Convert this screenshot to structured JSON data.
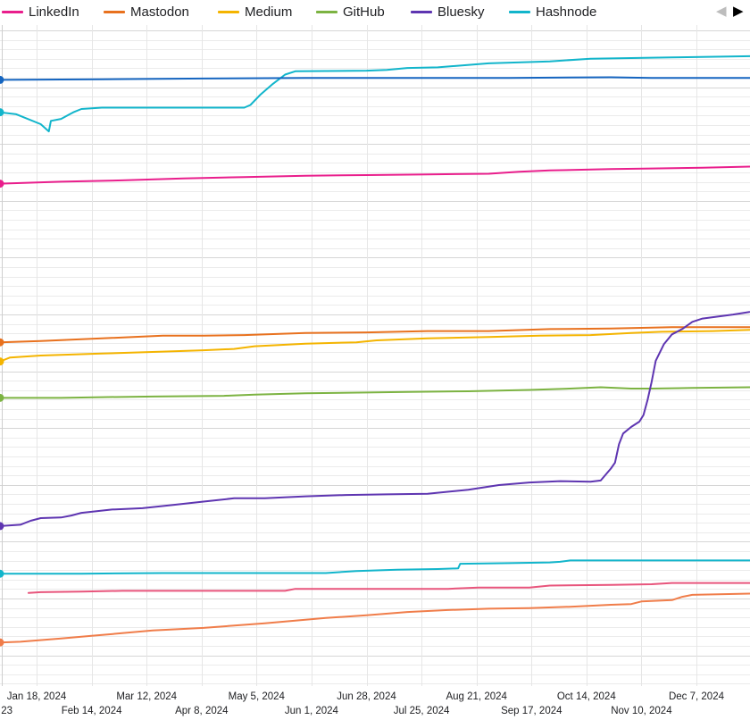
{
  "legend": {
    "items": [
      {
        "name": "LinkedIn",
        "color": "#e91e8c"
      },
      {
        "name": "Mastodon",
        "color": "#e8711e"
      },
      {
        "name": "Medium",
        "color": "#f4b400"
      },
      {
        "name": "GitHub",
        "color": "#7cb342"
      },
      {
        "name": "Bluesky",
        "color": "#5e35b1"
      },
      {
        "name": "Hashnode",
        "color": "#12b5cb"
      }
    ],
    "prev_icon": "◀",
    "next_icon": "▶"
  },
  "chart_data": {
    "type": "line",
    "title": "",
    "xlabel": "",
    "ylabel": "",
    "grid": true,
    "legend_position": "top",
    "x_ticks": [
      {
        "label": "23",
        "date": "2023-12-31"
      },
      {
        "label": "Jan 18, 2024",
        "date": "2024-01-18"
      },
      {
        "label": "Feb 14, 2024",
        "date": "2024-02-14"
      },
      {
        "label": "Mar 12, 2024",
        "date": "2024-03-12"
      },
      {
        "label": "Apr 8, 2024",
        "date": "2024-04-08"
      },
      {
        "label": "May 5, 2024",
        "date": "2024-05-05"
      },
      {
        "label": "Jun 1, 2024",
        "date": "2024-06-01"
      },
      {
        "label": "Jun 28, 2024",
        "date": "2024-06-28"
      },
      {
        "label": "Jul 25, 2024",
        "date": "2024-07-25"
      },
      {
        "label": "Aug 21, 2024",
        "date": "2024-08-21"
      },
      {
        "label": "Sep 17, 2024",
        "date": "2024-09-17"
      },
      {
        "label": "Oct 14, 2024",
        "date": "2024-10-14"
      },
      {
        "label": "Nov 10, 2024",
        "date": "2024-11-10"
      },
      {
        "label": "Dec 7, 2024",
        "date": "2024-12-07"
      }
    ],
    "series": [
      {
        "name": "Hashnode",
        "color": "#12b5cb",
        "values": [
          [
            0,
            0.132
          ],
          [
            8,
            0.135
          ],
          [
            20,
            0.15
          ],
          [
            24,
            0.161
          ],
          [
            25,
            0.145
          ],
          [
            30,
            0.142
          ],
          [
            36,
            0.132
          ],
          [
            40,
            0.127
          ],
          [
            50,
            0.125
          ],
          [
            70,
            0.125
          ],
          [
            120,
            0.125
          ],
          [
            123,
            0.121
          ],
          [
            128,
            0.105
          ],
          [
            134,
            0.089
          ],
          [
            140,
            0.075
          ],
          [
            145,
            0.07
          ],
          [
            180,
            0.069
          ],
          [
            190,
            0.068
          ],
          [
            200,
            0.065
          ],
          [
            215,
            0.064
          ],
          [
            240,
            0.058
          ],
          [
            270,
            0.055
          ],
          [
            290,
            0.051
          ],
          [
            330,
            0.049
          ],
          [
            370,
            0.047
          ]
        ]
      },
      {
        "name": "Bluesky",
        "color": "#1565c0",
        "values": [
          [
            0,
            0.083
          ],
          [
            50,
            0.082
          ],
          [
            100,
            0.081
          ],
          [
            150,
            0.08
          ],
          [
            200,
            0.08
          ],
          [
            250,
            0.08
          ],
          [
            300,
            0.079
          ],
          [
            320,
            0.08
          ],
          [
            370,
            0.08
          ]
        ]
      },
      {
        "name": "LinkedIn",
        "color": "#e91e8c",
        "values": [
          [
            0,
            0.24
          ],
          [
            30,
            0.237
          ],
          [
            60,
            0.235
          ],
          [
            90,
            0.232
          ],
          [
            120,
            0.23
          ],
          [
            150,
            0.228
          ],
          [
            180,
            0.227
          ],
          [
            210,
            0.226
          ],
          [
            240,
            0.225
          ],
          [
            255,
            0.222
          ],
          [
            270,
            0.22
          ],
          [
            300,
            0.218
          ],
          [
            320,
            0.217
          ],
          [
            345,
            0.216
          ],
          [
            370,
            0.214
          ]
        ]
      },
      {
        "name": "Mastodon",
        "color": "#e8711e",
        "values": [
          [
            0,
            0.48
          ],
          [
            20,
            0.478
          ],
          [
            50,
            0.474
          ],
          [
            80,
            0.47
          ],
          [
            100,
            0.47
          ],
          [
            120,
            0.469
          ],
          [
            150,
            0.466
          ],
          [
            180,
            0.465
          ],
          [
            210,
            0.463
          ],
          [
            240,
            0.463
          ],
          [
            270,
            0.46
          ],
          [
            300,
            0.459
          ],
          [
            330,
            0.457
          ],
          [
            370,
            0.457
          ]
        ]
      },
      {
        "name": "Medium",
        "color": "#f4b400",
        "values": [
          [
            0,
            0.509
          ],
          [
            5,
            0.503
          ],
          [
            20,
            0.5
          ],
          [
            50,
            0.497
          ],
          [
            80,
            0.494
          ],
          [
            100,
            0.492
          ],
          [
            115,
            0.49
          ],
          [
            125,
            0.486
          ],
          [
            150,
            0.482
          ],
          [
            175,
            0.48
          ],
          [
            185,
            0.477
          ],
          [
            210,
            0.474
          ],
          [
            240,
            0.472
          ],
          [
            265,
            0.47
          ],
          [
            290,
            0.469
          ],
          [
            310,
            0.466
          ],
          [
            325,
            0.464
          ],
          [
            350,
            0.463
          ],
          [
            370,
            0.461
          ]
        ]
      },
      {
        "name": "GitHub",
        "color": "#7cb342",
        "values": [
          [
            0,
            0.564
          ],
          [
            30,
            0.564
          ],
          [
            50,
            0.563
          ],
          [
            75,
            0.562
          ],
          [
            110,
            0.561
          ],
          [
            125,
            0.559
          ],
          [
            150,
            0.557
          ],
          [
            180,
            0.556
          ],
          [
            200,
            0.555
          ],
          [
            230,
            0.554
          ],
          [
            260,
            0.552
          ],
          [
            280,
            0.55
          ],
          [
            295,
            0.548
          ],
          [
            310,
            0.55
          ],
          [
            320,
            0.55
          ],
          [
            340,
            0.549
          ],
          [
            370,
            0.548
          ]
        ]
      },
      {
        "name": "Bluesky",
        "color": "#5e35b1",
        "values": [
          [
            0,
            0.758
          ],
          [
            10,
            0.756
          ],
          [
            15,
            0.75
          ],
          [
            20,
            0.746
          ],
          [
            30,
            0.745
          ],
          [
            35,
            0.742
          ],
          [
            40,
            0.738
          ],
          [
            55,
            0.733
          ],
          [
            70,
            0.731
          ],
          [
            85,
            0.726
          ],
          [
            100,
            0.721
          ],
          [
            115,
            0.716
          ],
          [
            130,
            0.716
          ],
          [
            150,
            0.713
          ],
          [
            170,
            0.711
          ],
          [
            190,
            0.71
          ],
          [
            210,
            0.709
          ],
          [
            230,
            0.703
          ],
          [
            245,
            0.696
          ],
          [
            260,
            0.692
          ],
          [
            275,
            0.69
          ],
          [
            290,
            0.691
          ],
          [
            295,
            0.689
          ],
          [
            300,
            0.671
          ],
          [
            302,
            0.662
          ],
          [
            304,
            0.634
          ],
          [
            306,
            0.618
          ],
          [
            310,
            0.608
          ],
          [
            314,
            0.6
          ],
          [
            316,
            0.59
          ],
          [
            318,
            0.567
          ],
          [
            320,
            0.54
          ],
          [
            322,
            0.508
          ],
          [
            326,
            0.483
          ],
          [
            330,
            0.468
          ],
          [
            335,
            0.46
          ],
          [
            340,
            0.449
          ],
          [
            345,
            0.444
          ],
          [
            350,
            0.442
          ],
          [
            360,
            0.438
          ],
          [
            368,
            0.434
          ]
        ]
      },
      {
        "name": "Hashnode",
        "color": "#12b5cb",
        "values": [
          [
            0,
            0.83
          ],
          [
            40,
            0.83
          ],
          [
            80,
            0.829
          ],
          [
            120,
            0.829
          ],
          [
            160,
            0.829
          ],
          [
            175,
            0.826
          ],
          [
            195,
            0.824
          ],
          [
            215,
            0.823
          ],
          [
            225,
            0.822
          ],
          [
            226,
            0.815
          ],
          [
            250,
            0.814
          ],
          [
            270,
            0.813
          ],
          [
            275,
            0.812
          ],
          [
            280,
            0.81
          ],
          [
            320,
            0.81
          ],
          [
            370,
            0.81
          ]
        ]
      },
      {
        "name": "LinkedIn",
        "color": "#e8557c",
        "values": [
          [
            14,
            0.859
          ],
          [
            20,
            0.858
          ],
          [
            40,
            0.857
          ],
          [
            60,
            0.856
          ],
          [
            100,
            0.856
          ],
          [
            140,
            0.856
          ],
          [
            145,
            0.853
          ],
          [
            180,
            0.853
          ],
          [
            220,
            0.853
          ],
          [
            235,
            0.851
          ],
          [
            260,
            0.851
          ],
          [
            270,
            0.848
          ],
          [
            300,
            0.847
          ],
          [
            320,
            0.846
          ],
          [
            330,
            0.844
          ],
          [
            370,
            0.844
          ]
        ]
      },
      {
        "name": "Mastodon",
        "color": "#f07d4a",
        "values": [
          [
            0,
            0.934
          ],
          [
            10,
            0.933
          ],
          [
            30,
            0.928
          ],
          [
            45,
            0.924
          ],
          [
            60,
            0.92
          ],
          [
            75,
            0.916
          ],
          [
            100,
            0.912
          ],
          [
            130,
            0.905
          ],
          [
            160,
            0.897
          ],
          [
            180,
            0.893
          ],
          [
            200,
            0.888
          ],
          [
            220,
            0.885
          ],
          [
            240,
            0.883
          ],
          [
            260,
            0.882
          ],
          [
            280,
            0.88
          ],
          [
            300,
            0.877
          ],
          [
            310,
            0.876
          ],
          [
            315,
            0.872
          ],
          [
            330,
            0.87
          ],
          [
            335,
            0.865
          ],
          [
            340,
            0.862
          ],
          [
            370,
            0.86
          ]
        ]
      }
    ]
  }
}
